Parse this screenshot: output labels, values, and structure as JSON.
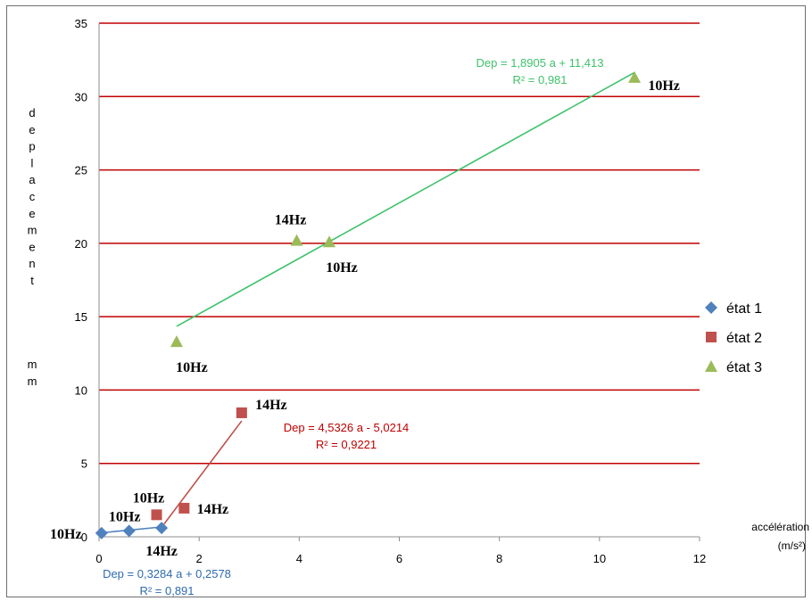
{
  "chart_data": {
    "type": "scatter",
    "title": "",
    "xlabel": "accélération\n(m/s²)",
    "ylabel": "deplacement    mm",
    "xlim": [
      0,
      12
    ],
    "ylim": [
      0,
      35
    ],
    "x_ticks": [
      "0",
      "2",
      "4",
      "6",
      "8",
      "10",
      "12"
    ],
    "y_ticks": [
      "0",
      "5",
      "10",
      "15",
      "20",
      "25",
      "30",
      "35"
    ],
    "grid": "horizontal",
    "legend_position": "right",
    "colors": {
      "etat1": "#4f81bd",
      "etat2": "#c0504d",
      "etat3": "#9bbb59",
      "grid": "#c00000",
      "trend3": "#3ec26b"
    },
    "series": [
      {
        "name": "état 1",
        "marker": "diamond",
        "points": [
          {
            "x": 0.05,
            "y": 0.25,
            "label": "10Hz"
          },
          {
            "x": 0.6,
            "y": 0.4,
            "label": "10Hz"
          },
          {
            "x": 1.25,
            "y": 0.6,
            "label": "14Hz"
          }
        ],
        "trendline": {
          "slope": 0.3284,
          "intercept": 0.2578,
          "x_range": [
            0.05,
            1.25
          ]
        },
        "equation": "Dep = 0,3284 a + 0,2578",
        "r2": "R² = 0,891"
      },
      {
        "name": "état 2",
        "marker": "square",
        "points": [
          {
            "x": 1.15,
            "y": 1.5,
            "label": "10Hz"
          },
          {
            "x": 1.7,
            "y": 1.95,
            "label": "14Hz"
          },
          {
            "x": 2.85,
            "y": 8.45,
            "label": "14Hz"
          }
        ],
        "trendline": {
          "slope": 4.5326,
          "intercept": -5.0214,
          "x_range": [
            1.3,
            2.85
          ]
        },
        "equation": "Dep = 4,5326 a - 5,0214",
        "r2": "R² = 0,9221"
      },
      {
        "name": "état 3",
        "marker": "triangle",
        "points": [
          {
            "x": 1.55,
            "y": 13.3,
            "label": "10Hz"
          },
          {
            "x": 3.95,
            "y": 20.2,
            "label": "14Hz"
          },
          {
            "x": 4.6,
            "y": 20.1,
            "label": "10Hz"
          },
          {
            "x": 10.7,
            "y": 31.3,
            "label": "10Hz"
          }
        ],
        "trendline": {
          "slope": 1.8905,
          "intercept": 11.413,
          "x_range": [
            1.55,
            10.7
          ]
        },
        "equation": "Dep = 1,8905 a + 11,413",
        "r2": "R² = 0,981"
      }
    ]
  }
}
